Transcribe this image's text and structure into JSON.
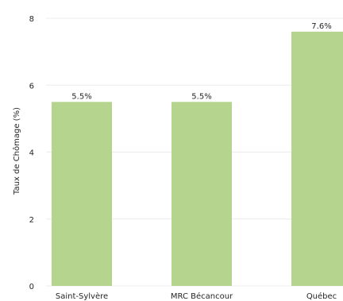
{
  "chart_data": {
    "type": "bar",
    "title": "",
    "xlabel": "",
    "ylabel": "Taux de Chômage (%)",
    "categories": [
      "Saint-Sylvère",
      "MRC Bécancour",
      "Québec"
    ],
    "values": [
      5.5,
      5.5,
      7.6
    ],
    "value_labels": [
      "5.5%",
      "5.5%",
      "7.6%"
    ],
    "ylim": [
      0,
      8
    ],
    "yticks": [
      0,
      2,
      4,
      6,
      8
    ],
    "grid": true,
    "bar_color": "#b5d48e"
  }
}
